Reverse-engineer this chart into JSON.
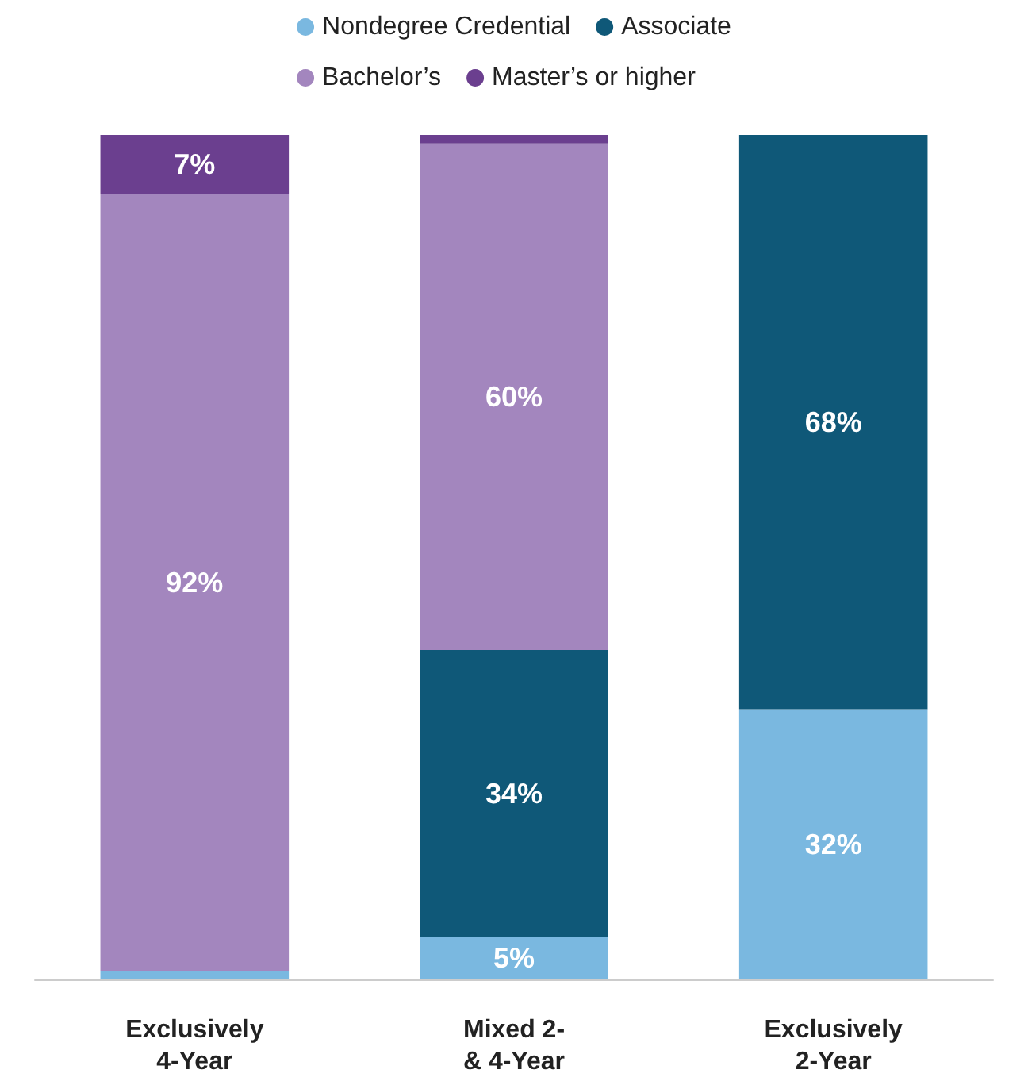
{
  "chart_data": {
    "type": "bar",
    "stacked": true,
    "categories": [
      "Exclusively\n4-Year",
      "Mixed 2-\n& 4-Year",
      "Exclusively\n2-Year"
    ],
    "series": [
      {
        "name": "Nondegree Credential",
        "color": "#7ab8e0",
        "values": [
          1,
          5,
          32
        ],
        "value_labels": [
          null,
          "5%",
          "32%"
        ]
      },
      {
        "name": "Associate",
        "color": "#0f5878",
        "values": [
          0,
          34,
          68
        ],
        "value_labels": [
          null,
          "34%",
          "68%"
        ]
      },
      {
        "name": "Bachelor’s",
        "color": "#a386be",
        "values": [
          92,
          60,
          0
        ],
        "value_labels": [
          "92%",
          "60%",
          null
        ]
      },
      {
        "name": "Master’s or higher",
        "color": "#6b3f8f",
        "values": [
          7,
          1,
          0
        ],
        "value_labels": [
          "7%",
          null,
          null
        ]
      }
    ],
    "ylim": [
      0,
      100
    ],
    "tick_labels": "x",
    "legend": "top"
  }
}
